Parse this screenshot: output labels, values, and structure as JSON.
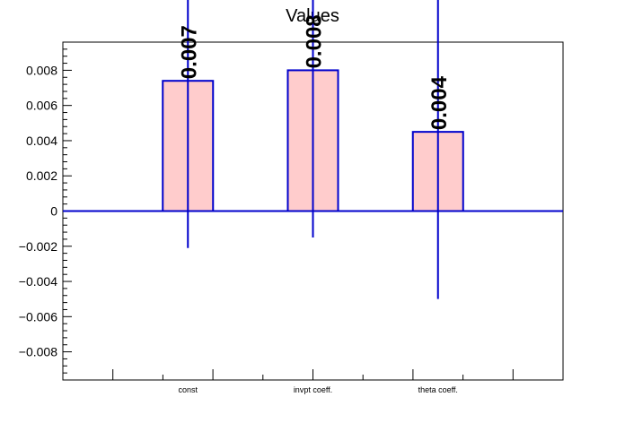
{
  "chart_data": {
    "type": "bar",
    "title": "Values",
    "xlabel": "",
    "ylabel": "",
    "categories": [
      "const",
      "invpt coeff.",
      "theta coeff."
    ],
    "values": [
      0.0074,
      0.008,
      0.0045
    ],
    "value_labels": [
      "0.007",
      "0.008",
      "0.004"
    ],
    "error_bars": [
      0.0095,
      0.0095,
      0.0095
    ],
    "ylim": [
      -0.0096,
      0.0096
    ],
    "yticks": [
      -0.008,
      -0.006,
      -0.004,
      -0.002,
      0,
      0.002,
      0.004,
      0.006,
      0.008
    ],
    "ytick_labels": [
      "−0.008",
      "−0.006",
      "−0.004",
      "−0.002",
      "0",
      "0.002",
      "0.004",
      "0.006",
      "0.008"
    ],
    "grid": false,
    "colors": {
      "bar_fill": "#ffcccc",
      "bar_edge": "#0000cc",
      "axis": "#000000"
    }
  }
}
